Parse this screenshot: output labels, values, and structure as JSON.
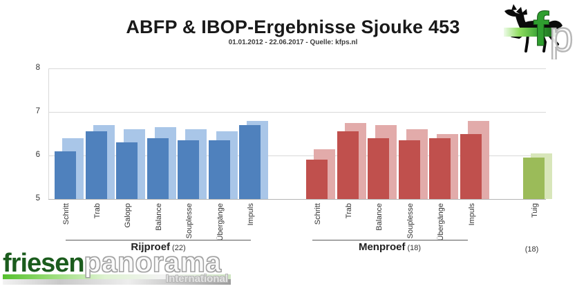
{
  "title": "ABFP & IBOP-Ergebnisse Sjouke 453",
  "subtitle": "01.01.2012 - 22.06.2017 - Quelle: kfps.nl",
  "brand_top": {
    "f": "f",
    "p": "p",
    "icon": "horse-icon"
  },
  "brand_bottom": {
    "part1": "friesen",
    "part2": "panorama",
    "tagline": "International"
  },
  "chart_data": {
    "type": "bar",
    "title": "ABFP & IBOP-Ergebnisse Sjouke 453",
    "subtitle": "01.01.2012 - 22.06.2017 - Quelle: kfps.nl",
    "ylim": [
      5,
      8
    ],
    "yticks": [
      5,
      6,
      7,
      8
    ],
    "grid": true,
    "note": "each category shows a pale offset bar behind a solid bar",
    "groups": [
      {
        "name": "Rijproef",
        "count_label": "(22)",
        "color_front": "#4f81bd",
        "color_back": "#a9c6e8",
        "categories": [
          "Schritt",
          "Trab",
          "Galopp",
          "Balance",
          "Souplesse",
          "Übergänge",
          "Impuls"
        ],
        "front": [
          6.1,
          6.55,
          6.3,
          6.4,
          6.35,
          6.35,
          6.7
        ],
        "back": [
          6.4,
          6.7,
          6.6,
          6.65,
          6.6,
          6.55,
          6.8
        ]
      },
      {
        "name": "Menproef",
        "count_label": "(18)",
        "color_front": "#c0504d",
        "color_back": "#e2abaa",
        "categories": [
          "Schritt",
          "Trab",
          "Balance",
          "Souplesse",
          "Übergänge",
          "Impuls"
        ],
        "front": [
          5.9,
          6.55,
          6.4,
          6.35,
          6.4,
          6.5
        ],
        "back": [
          6.15,
          6.75,
          6.7,
          6.6,
          6.5,
          6.8
        ]
      },
      {
        "name": "",
        "count_label": "(18)",
        "color_front": "#9bbb59",
        "color_back": "#d8e6ba",
        "categories": [
          "Tuig"
        ],
        "front": [
          5.95
        ],
        "back": [
          6.05
        ]
      }
    ]
  }
}
